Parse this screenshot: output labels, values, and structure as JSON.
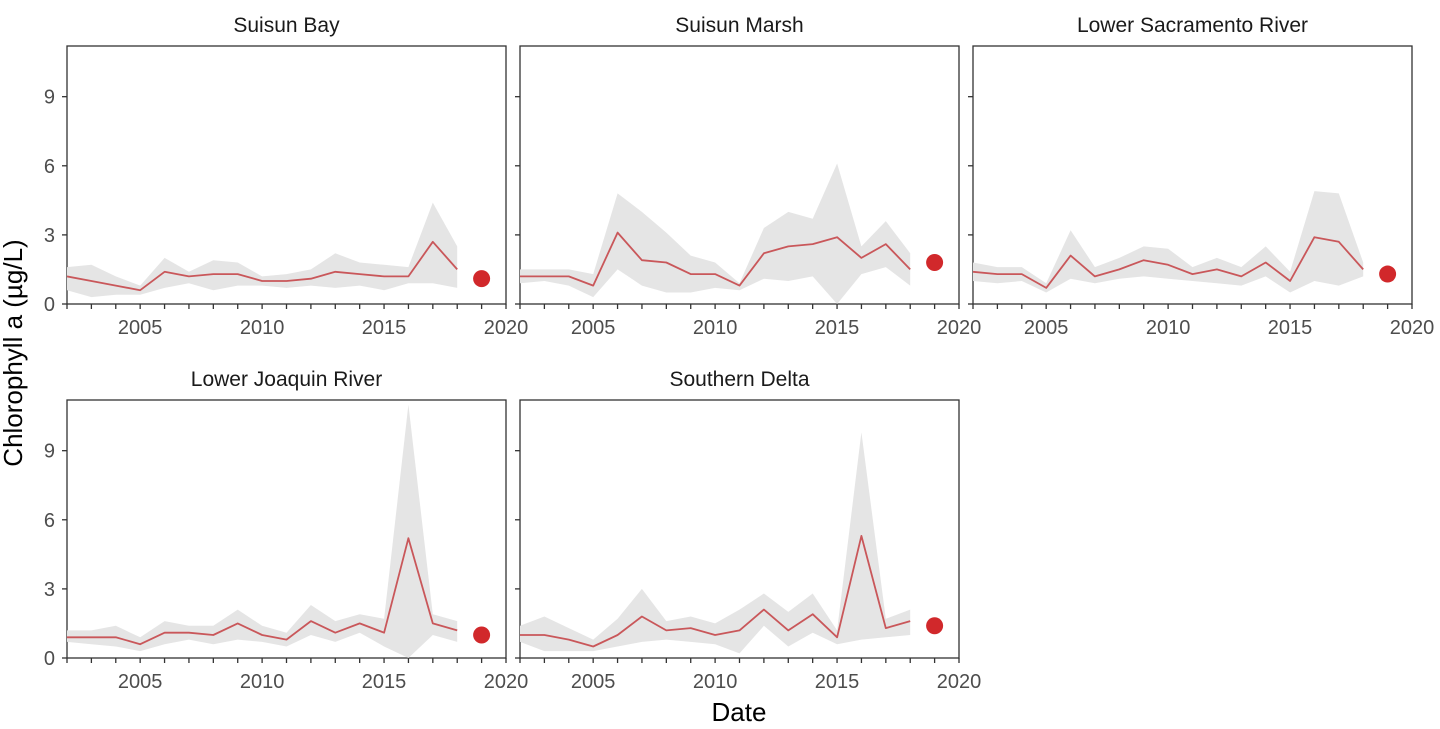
{
  "chart_data": {
    "type": "line",
    "xlabel": "Date",
    "ylabel": "Chlorophyll a (µg/L)",
    "xlim": [
      2002,
      2020
    ],
    "ylim": [
      0,
      11.2
    ],
    "x_ticks": [
      2005,
      2010,
      2015,
      2020
    ],
    "y_ticks": [
      0,
      3,
      6,
      9
    ],
    "colors": {
      "line": "#c9575a",
      "band": "#e5e5e5",
      "point": "#d1282b"
    },
    "panels": [
      {
        "title": "Suisun Bay",
        "x": [
          2002,
          2003,
          2004,
          2005,
          2006,
          2007,
          2008,
          2009,
          2010,
          2011,
          2012,
          2013,
          2014,
          2015,
          2016,
          2017,
          2018
        ],
        "y": [
          1.2,
          1.0,
          0.8,
          0.6,
          1.4,
          1.2,
          1.3,
          1.3,
          1.0,
          1.0,
          1.1,
          1.4,
          1.3,
          1.2,
          1.2,
          2.7,
          1.5
        ],
        "lower": [
          0.6,
          0.3,
          0.4,
          0.4,
          0.7,
          0.9,
          0.6,
          0.8,
          0.8,
          0.7,
          0.8,
          0.7,
          0.8,
          0.6,
          0.9,
          0.9,
          0.7
        ],
        "upper": [
          1.6,
          1.7,
          1.2,
          0.8,
          2.0,
          1.4,
          1.9,
          1.8,
          1.2,
          1.3,
          1.5,
          2.2,
          1.8,
          1.7,
          1.6,
          4.4,
          2.5
        ],
        "highlight": {
          "x": 2019,
          "y": 1.1
        }
      },
      {
        "title": "Suisun Marsh",
        "x": [
          2002,
          2003,
          2004,
          2005,
          2006,
          2007,
          2008,
          2009,
          2010,
          2011,
          2012,
          2013,
          2014,
          2015,
          2016,
          2017,
          2018
        ],
        "y": [
          1.2,
          1.2,
          1.2,
          0.8,
          3.1,
          1.9,
          1.8,
          1.3,
          1.3,
          0.8,
          2.2,
          2.5,
          2.6,
          2.9,
          2.0,
          2.6,
          1.5
        ],
        "lower": [
          0.9,
          1.0,
          0.8,
          0.3,
          1.5,
          0.8,
          0.5,
          0.5,
          0.7,
          0.6,
          1.1,
          1.0,
          1.2,
          0.0,
          1.3,
          1.6,
          0.8
        ],
        "upper": [
          1.5,
          1.5,
          1.5,
          1.3,
          4.8,
          4.0,
          3.1,
          2.1,
          1.8,
          0.9,
          3.3,
          4.0,
          3.7,
          6.1,
          2.5,
          3.6,
          2.2
        ],
        "highlight": {
          "x": 2019,
          "y": 1.8
        }
      },
      {
        "title": "Lower Sacramento River",
        "x": [
          2002,
          2003,
          2004,
          2005,
          2006,
          2007,
          2008,
          2009,
          2010,
          2011,
          2012,
          2013,
          2014,
          2015,
          2016,
          2017,
          2018
        ],
        "y": [
          1.4,
          1.3,
          1.3,
          0.7,
          2.1,
          1.2,
          1.5,
          1.9,
          1.7,
          1.3,
          1.5,
          1.2,
          1.8,
          1.0,
          2.9,
          2.7,
          1.5
        ],
        "lower": [
          1.0,
          0.9,
          1.0,
          0.5,
          1.1,
          0.9,
          1.1,
          1.2,
          1.1,
          1.0,
          0.9,
          0.8,
          1.2,
          0.5,
          1.0,
          0.8,
          1.2
        ],
        "upper": [
          1.8,
          1.6,
          1.6,
          0.9,
          3.2,
          1.6,
          2.0,
          2.5,
          2.4,
          1.6,
          2.0,
          1.6,
          2.5,
          1.4,
          4.9,
          4.8,
          1.8
        ],
        "highlight": {
          "x": 2019,
          "y": 1.3
        }
      },
      {
        "title": "Lower Joaquin River",
        "x": [
          2002,
          2003,
          2004,
          2005,
          2006,
          2007,
          2008,
          2009,
          2010,
          2011,
          2012,
          2013,
          2014,
          2015,
          2016,
          2017,
          2018
        ],
        "y": [
          0.9,
          0.9,
          0.9,
          0.6,
          1.1,
          1.1,
          1.0,
          1.5,
          1.0,
          0.8,
          1.6,
          1.1,
          1.5,
          1.1,
          5.2,
          1.5,
          1.2
        ],
        "lower": [
          0.7,
          0.6,
          0.5,
          0.3,
          0.6,
          0.8,
          0.6,
          0.8,
          0.7,
          0.5,
          1.0,
          0.7,
          1.1,
          0.5,
          0.0,
          1.0,
          0.7
        ],
        "upper": [
          1.2,
          1.2,
          1.4,
          0.9,
          1.6,
          1.4,
          1.4,
          2.1,
          1.4,
          1.1,
          2.3,
          1.6,
          1.9,
          1.7,
          11.0,
          1.9,
          1.6
        ],
        "highlight": {
          "x": 2019,
          "y": 1.0
        }
      },
      {
        "title": "Southern Delta",
        "x": [
          2002,
          2003,
          2004,
          2005,
          2006,
          2007,
          2008,
          2009,
          2010,
          2011,
          2012,
          2013,
          2014,
          2015,
          2016,
          2017,
          2018
        ],
        "y": [
          1.0,
          1.0,
          0.8,
          0.5,
          1.0,
          1.8,
          1.2,
          1.3,
          1.0,
          1.2,
          2.1,
          1.2,
          1.9,
          0.9,
          5.3,
          1.3,
          1.6
        ],
        "lower": [
          0.7,
          0.3,
          0.3,
          0.3,
          0.5,
          0.7,
          0.8,
          0.7,
          0.6,
          0.2,
          1.4,
          0.5,
          1.1,
          0.6,
          0.8,
          0.9,
          1.0
        ],
        "upper": [
          1.4,
          1.8,
          1.3,
          0.8,
          1.7,
          3.0,
          1.6,
          1.8,
          1.5,
          2.1,
          2.8,
          2.0,
          2.8,
          1.2,
          9.8,
          1.7,
          2.1
        ],
        "highlight": {
          "x": 2019,
          "y": 1.4
        }
      }
    ]
  }
}
